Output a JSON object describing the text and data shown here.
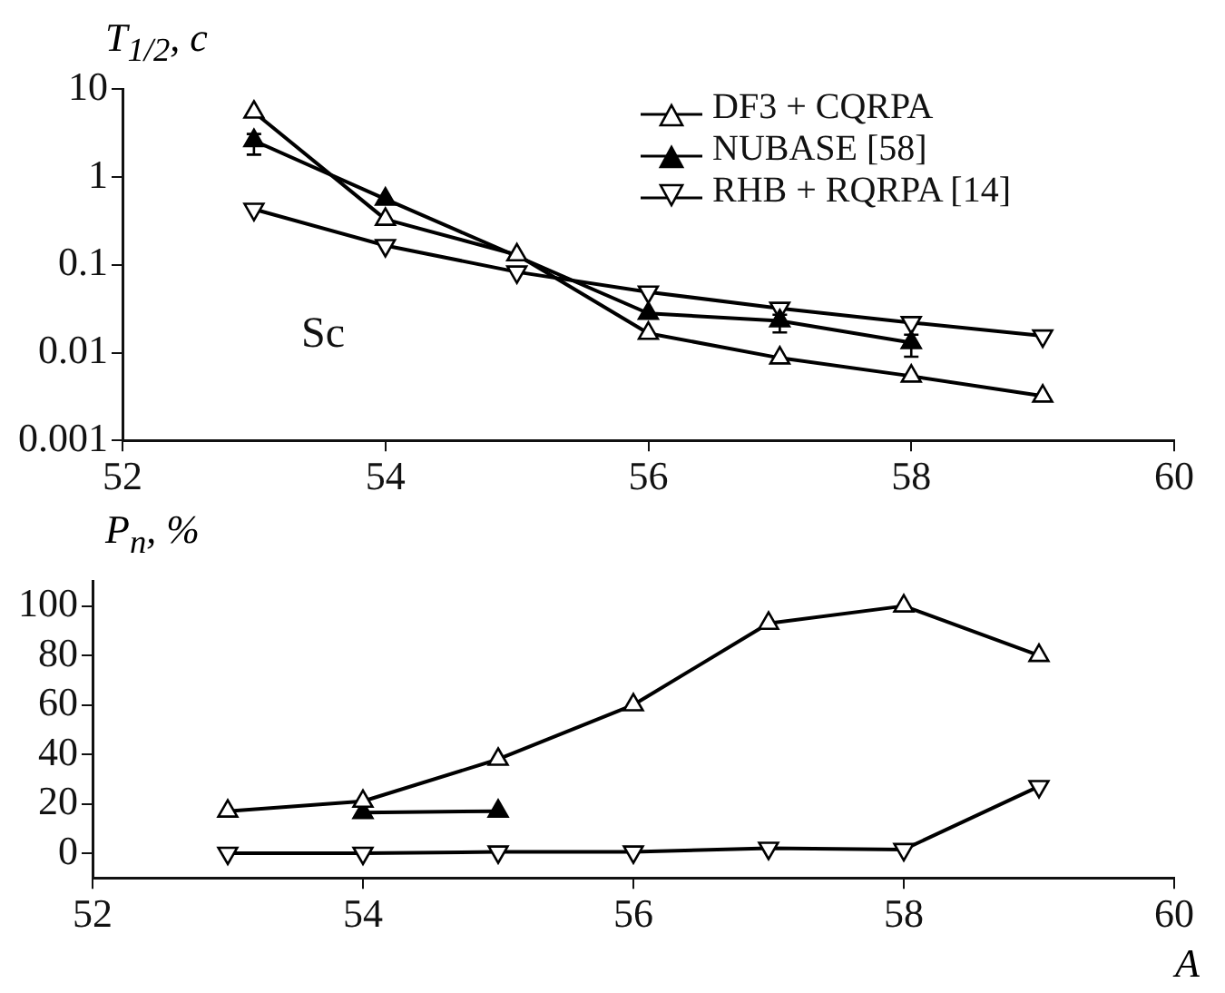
{
  "chart_data": [
    {
      "type": "line",
      "ylabel": "T$_{1/2}$, c",
      "xlim": [
        52,
        60
      ],
      "xticks": [
        52,
        54,
        56,
        58,
        60
      ],
      "ylim": [
        0.001,
        10
      ],
      "yticks": [
        0.001,
        0.01,
        0.1,
        1,
        10
      ],
      "log": "y",
      "grid": false,
      "legend": "top right",
      "annotations": [
        "Sc"
      ],
      "series": [
        {
          "name": "DF3 + CQRPA",
          "color": "#000000",
          "marker": "triangle-open",
          "x": [
            53,
            54,
            55,
            56,
            57,
            58,
            59
          ],
          "values": [
            5.5,
            0.33,
            0.13,
            0.0166,
            0.0087,
            0.0054,
            0.0032
          ]
        },
        {
          "name": "NUBASE [58]",
          "color": "#000000",
          "marker": "triangle",
          "x": [
            53,
            54,
            56,
            57,
            58
          ],
          "values": [
            2.6,
            0.56,
            0.028,
            0.023,
            0.013
          ],
          "errors": [
            [
              1.8,
              3.1
            ],
            null,
            null,
            [
              0.017,
              0.027
            ],
            [
              0.009,
              0.016
            ]
          ]
        },
        {
          "name": "RHB + RQRPA [14]",
          "color": "#000000",
          "marker": "triangle-down-open",
          "x": [
            53,
            54,
            55,
            56,
            57,
            58,
            59
          ],
          "values": [
            0.43,
            0.166,
            0.083,
            0.049,
            0.032,
            0.022,
            0.0155
          ]
        }
      ]
    },
    {
      "type": "line",
      "ylabel": "P$_{n}$, %",
      "xlabel": "A",
      "xlim": [
        52,
        60
      ],
      "xticks": [
        52,
        54,
        56,
        58,
        60
      ],
      "ylim": [
        -10,
        110
      ],
      "yticks": [
        0,
        20,
        40,
        60,
        80,
        100
      ],
      "grid": false,
      "legend": false,
      "series": [
        {
          "color": "#000000",
          "marker": "triangle-open",
          "x": [
            53,
            54,
            55,
            56,
            57,
            58,
            59
          ],
          "values": [
            17,
            21,
            38,
            60,
            93,
            100,
            80
          ]
        },
        {
          "color": "#000000",
          "marker": "triangle",
          "x": [
            54,
            55
          ],
          "values": [
            16.4,
            17
          ]
        },
        {
          "color": "#000000",
          "marker": "triangle-down-open",
          "x": [
            53,
            54,
            55,
            56,
            57,
            58,
            59
          ],
          "values": [
            0,
            0,
            0.5,
            0.5,
            2,
            1.5,
            27
          ]
        }
      ]
    }
  ]
}
